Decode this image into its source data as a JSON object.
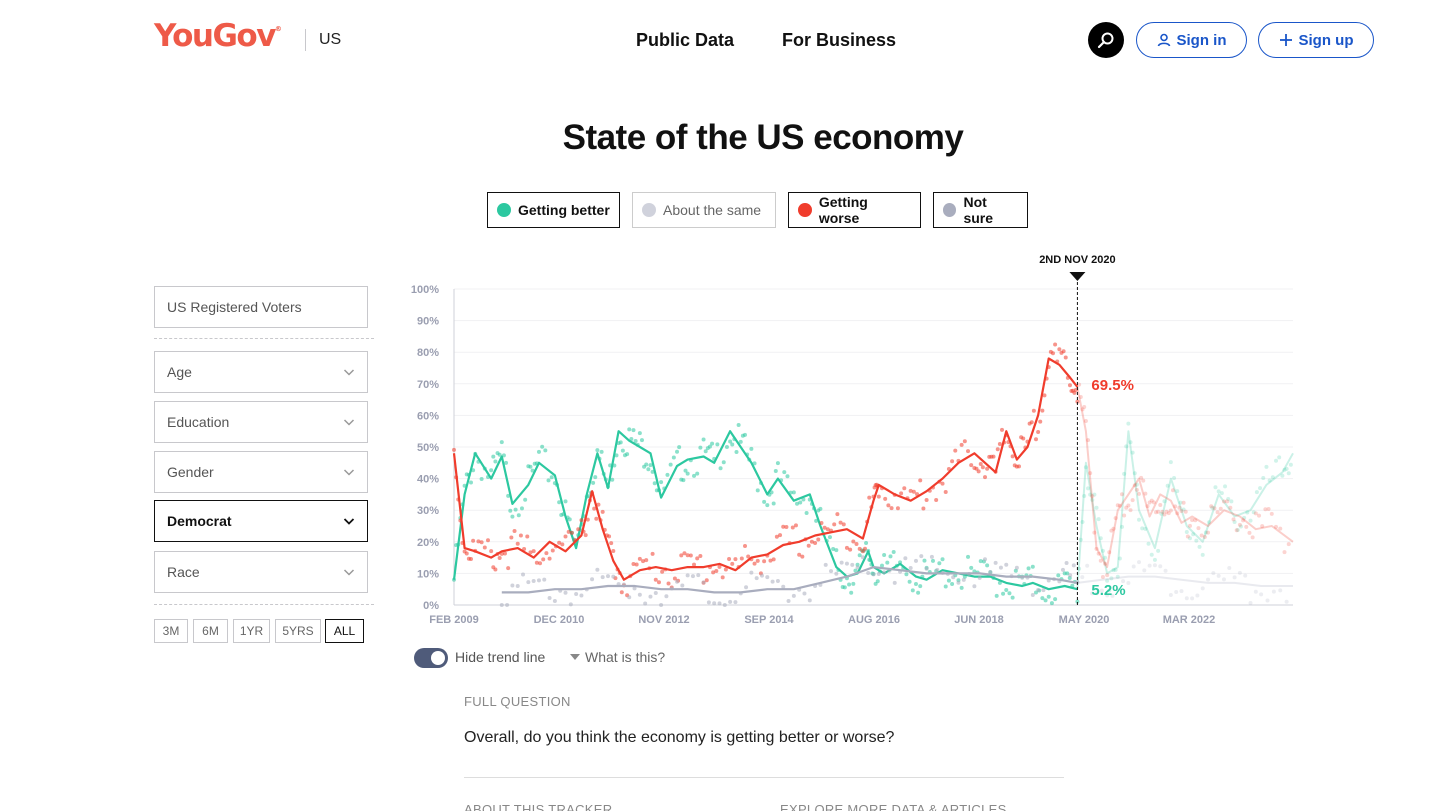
{
  "header": {
    "logo": "YouGov",
    "logo_mark": "®",
    "region": "US",
    "nav": [
      "Public Data",
      "For Business"
    ],
    "sign_in": "Sign in",
    "sign_up": "Sign up"
  },
  "title": "State of the US economy",
  "legend": [
    {
      "label": "Getting better",
      "color": "#2cc8a0",
      "active": true
    },
    {
      "label": "About the same",
      "color": "#d0d2dc",
      "active": false
    },
    {
      "label": "Getting worse",
      "color": "#f03c2c",
      "active": true
    },
    {
      "label": "Not sure",
      "color": "#a9adbe",
      "active": true
    }
  ],
  "sidebar": {
    "population": "US Registered Voters",
    "filters": [
      "Age",
      "Education",
      "Gender",
      "Democrat",
      "Race"
    ],
    "active_filter": "Democrat",
    "ranges": [
      "3M",
      "6M",
      "1YR",
      "5YRS",
      "ALL"
    ],
    "active_range": "ALL"
  },
  "trend_toggle": "Hide trend line",
  "what_is_this": "What is this?",
  "full_question": {
    "label": "FULL QUESTION",
    "text": "Overall, do you think the economy is getting better or worse?"
  },
  "footer": {
    "about": "ABOUT THIS TRACKER",
    "explore": "EXPLORE MORE DATA & ARTICLES"
  },
  "chart_data": {
    "type": "line",
    "x_tick_labels": [
      "FEB 2009",
      "DEC 2010",
      "NOV 2012",
      "SEP 2014",
      "AUG 2016",
      "JUN 2018",
      "MAY 2020",
      "MAR 2022"
    ],
    "y_tick_labels": [
      "100%",
      "90%",
      "80%",
      "70%",
      "60%",
      "50%",
      "40%",
      "30%",
      "20%",
      "10%",
      "0%"
    ],
    "ylim": [
      0,
      100
    ],
    "xlim": [
      2009.1,
      2024.9
    ],
    "marker_label": "2ND NOV 2020",
    "marker_x": 2020.84,
    "value_labels": [
      {
        "series": "Getting worse",
        "text": "69.5%"
      },
      {
        "series": "Getting better",
        "text": "5.2%"
      }
    ],
    "series": [
      {
        "name": "Getting better",
        "color": "#2cc8a0",
        "x": [
          2009.1,
          2009.3,
          2009.5,
          2009.8,
          2010.0,
          2010.2,
          2010.5,
          2010.7,
          2011.0,
          2011.2,
          2011.4,
          2011.6,
          2011.8,
          2012.0,
          2012.2,
          2012.4,
          2012.6,
          2012.8,
          2013.0,
          2013.3,
          2013.5,
          2013.8,
          2014.0,
          2014.3,
          2014.5,
          2014.7,
          2015.0,
          2015.2,
          2015.5,
          2015.8,
          2016.0,
          2016.3,
          2016.5,
          2016.7,
          2016.9,
          2017.0,
          2017.2,
          2017.5,
          2017.8,
          2018.0,
          2018.3,
          2018.6,
          2018.9,
          2019.2,
          2019.5,
          2019.8,
          2020.0,
          2020.3,
          2020.6,
          2020.84,
          2021.0,
          2021.2,
          2021.4,
          2021.6,
          2021.8,
          2022.0,
          2022.3,
          2022.6,
          2022.9,
          2023.2,
          2023.5,
          2023.8,
          2024.1,
          2024.4,
          2024.7,
          2024.9
        ],
        "y": [
          8,
          35,
          48,
          40,
          47,
          32,
          38,
          45,
          41,
          28,
          18,
          35,
          48,
          37,
          55,
          52,
          50,
          48,
          34,
          44,
          46,
          47,
          45,
          55,
          50,
          45,
          35,
          40,
          33,
          35,
          25,
          12,
          9,
          10,
          17,
          12,
          10,
          13,
          9,
          8,
          11,
          10,
          9,
          9,
          7,
          6,
          7,
          5,
          6,
          5,
          45,
          25,
          10,
          12,
          55,
          30,
          18,
          40,
          25,
          20,
          35,
          28,
          30,
          38,
          42,
          48
        ]
      },
      {
        "name": "Getting worse",
        "color": "#f03c2c",
        "x": [
          2009.1,
          2009.3,
          2009.5,
          2009.8,
          2010.0,
          2010.3,
          2010.6,
          2010.9,
          2011.2,
          2011.5,
          2011.7,
          2011.9,
          2012.1,
          2012.3,
          2012.6,
          2012.9,
          2013.2,
          2013.5,
          2013.8,
          2014.1,
          2014.4,
          2014.7,
          2015.0,
          2015.3,
          2015.6,
          2015.9,
          2016.2,
          2016.5,
          2016.8,
          2017.0,
          2017.1,
          2017.4,
          2017.7,
          2018.0,
          2018.3,
          2018.6,
          2018.9,
          2019.1,
          2019.3,
          2019.5,
          2019.7,
          2019.9,
          2020.1,
          2020.3,
          2020.5,
          2020.7,
          2020.84,
          2021.0,
          2021.2,
          2021.4,
          2021.6,
          2021.8,
          2022.0,
          2022.2,
          2022.4,
          2022.6,
          2022.8,
          2023.0,
          2023.3,
          2023.6,
          2023.9,
          2024.2,
          2024.5,
          2024.9
        ],
        "y": [
          48,
          18,
          17,
          15,
          17,
          18,
          15,
          20,
          17,
          22,
          36,
          24,
          14,
          8,
          11,
          12,
          11,
          12,
          12,
          13,
          11,
          15,
          16,
          19,
          20,
          22,
          23,
          24,
          21,
          33,
          38,
          35,
          33,
          36,
          40,
          45,
          48,
          45,
          42,
          55,
          46,
          50,
          60,
          78,
          76,
          72,
          69,
          55,
          18,
          12,
          30,
          35,
          40,
          28,
          35,
          33,
          26,
          28,
          25,
          30,
          28,
          24,
          25,
          20
        ]
      },
      {
        "name": "Not sure",
        "color": "#a9adbe",
        "x": [
          2010.0,
          2010.5,
          2011.0,
          2011.5,
          2012.0,
          2012.5,
          2013.0,
          2013.5,
          2014.0,
          2014.5,
          2015.0,
          2015.5,
          2016.0,
          2016.5,
          2017.0,
          2017.5,
          2018.0,
          2018.5,
          2019.0,
          2019.5,
          2020.0,
          2020.5,
          2020.84,
          2021.3,
          2021.8,
          2022.3,
          2022.8,
          2023.3,
          2023.8,
          2024.3,
          2024.9
        ],
        "y": [
          4,
          4,
          5,
          5,
          6,
          6,
          5,
          5,
          4,
          4,
          5,
          5,
          7,
          9,
          12,
          11,
          10,
          10,
          10,
          9,
          9,
          8,
          7,
          8,
          9,
          9,
          8,
          7,
          7,
          6,
          6
        ]
      }
    ]
  }
}
